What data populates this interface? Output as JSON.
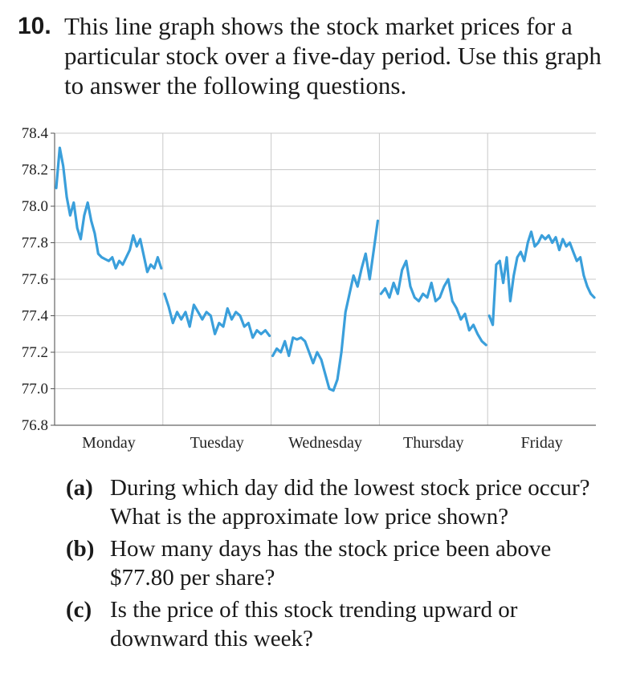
{
  "problem": {
    "number": "10.",
    "text": "This line graph shows the stock market prices for a particular stock over a five-day period. Use this graph to answer the following questions."
  },
  "questions": [
    {
      "label": "(a)",
      "text": "During which day did the lowest stock price occur? What is the approximate low price shown?"
    },
    {
      "label": "(b)",
      "text": "How many days has the stock price been above $77.80 per share?"
    },
    {
      "label": "(c)",
      "text": "Is the price of this stock trending upward or downward this week?"
    }
  ],
  "chart_data": {
    "type": "line",
    "title": "",
    "xlabel": "",
    "ylabel": "",
    "categories": [
      "Monday",
      "Tuesday",
      "Wednesday",
      "Thursday",
      "Friday"
    ],
    "yticks": [
      "78.4",
      "78.2",
      "78.0",
      "77.8",
      "77.6",
      "77.4",
      "77.2",
      "77.0",
      "76.8"
    ],
    "ylim": [
      76.8,
      78.4
    ],
    "grid": true,
    "line_color": "#3a9fdb",
    "series": [
      {
        "days": [
          [
            78.1,
            78.32,
            78.22,
            78.05,
            77.95,
            78.02,
            77.88,
            77.82,
            77.95,
            78.02,
            77.92,
            77.85,
            77.74,
            77.72,
            77.71,
            77.7,
            77.72,
            77.66,
            77.7,
            77.68,
            77.72,
            77.76,
            77.84,
            77.78,
            77.82,
            77.73,
            77.64,
            77.68,
            77.66,
            77.72,
            77.66
          ],
          [
            77.52,
            77.45,
            77.36,
            77.42,
            77.38,
            77.42,
            77.34,
            77.46,
            77.42,
            77.38,
            77.42,
            77.4,
            77.3,
            77.36,
            77.34,
            77.44,
            77.38,
            77.42,
            77.4,
            77.34,
            77.36,
            77.28,
            77.32,
            77.3,
            77.32,
            77.29
          ],
          [
            77.18,
            77.22,
            77.2,
            77.26,
            77.18,
            77.28,
            77.27,
            77.28,
            77.26,
            77.2,
            77.14,
            77.2,
            77.16,
            77.08,
            77.0,
            76.99,
            77.05,
            77.2,
            77.42,
            77.52,
            77.62,
            77.56,
            77.66,
            77.74,
            77.6,
            77.76,
            77.92
          ],
          [
            77.52,
            77.55,
            77.5,
            77.58,
            77.52,
            77.65,
            77.7,
            77.56,
            77.5,
            77.48,
            77.52,
            77.5,
            77.58,
            77.48,
            77.5,
            77.56,
            77.6,
            77.48,
            77.44,
            77.38,
            77.41,
            77.32,
            77.35,
            77.3,
            77.26,
            77.24
          ],
          [
            77.4,
            77.35,
            77.68,
            77.7,
            77.58,
            77.72,
            77.48,
            77.62,
            77.72,
            77.75,
            77.7,
            77.8,
            77.86,
            77.78,
            77.8,
            77.84,
            77.82,
            77.84,
            77.8,
            77.83,
            77.76,
            77.82,
            77.78,
            77.8,
            77.75,
            77.7,
            77.72,
            77.62,
            77.56,
            77.52,
            77.5
          ]
        ]
      }
    ]
  }
}
